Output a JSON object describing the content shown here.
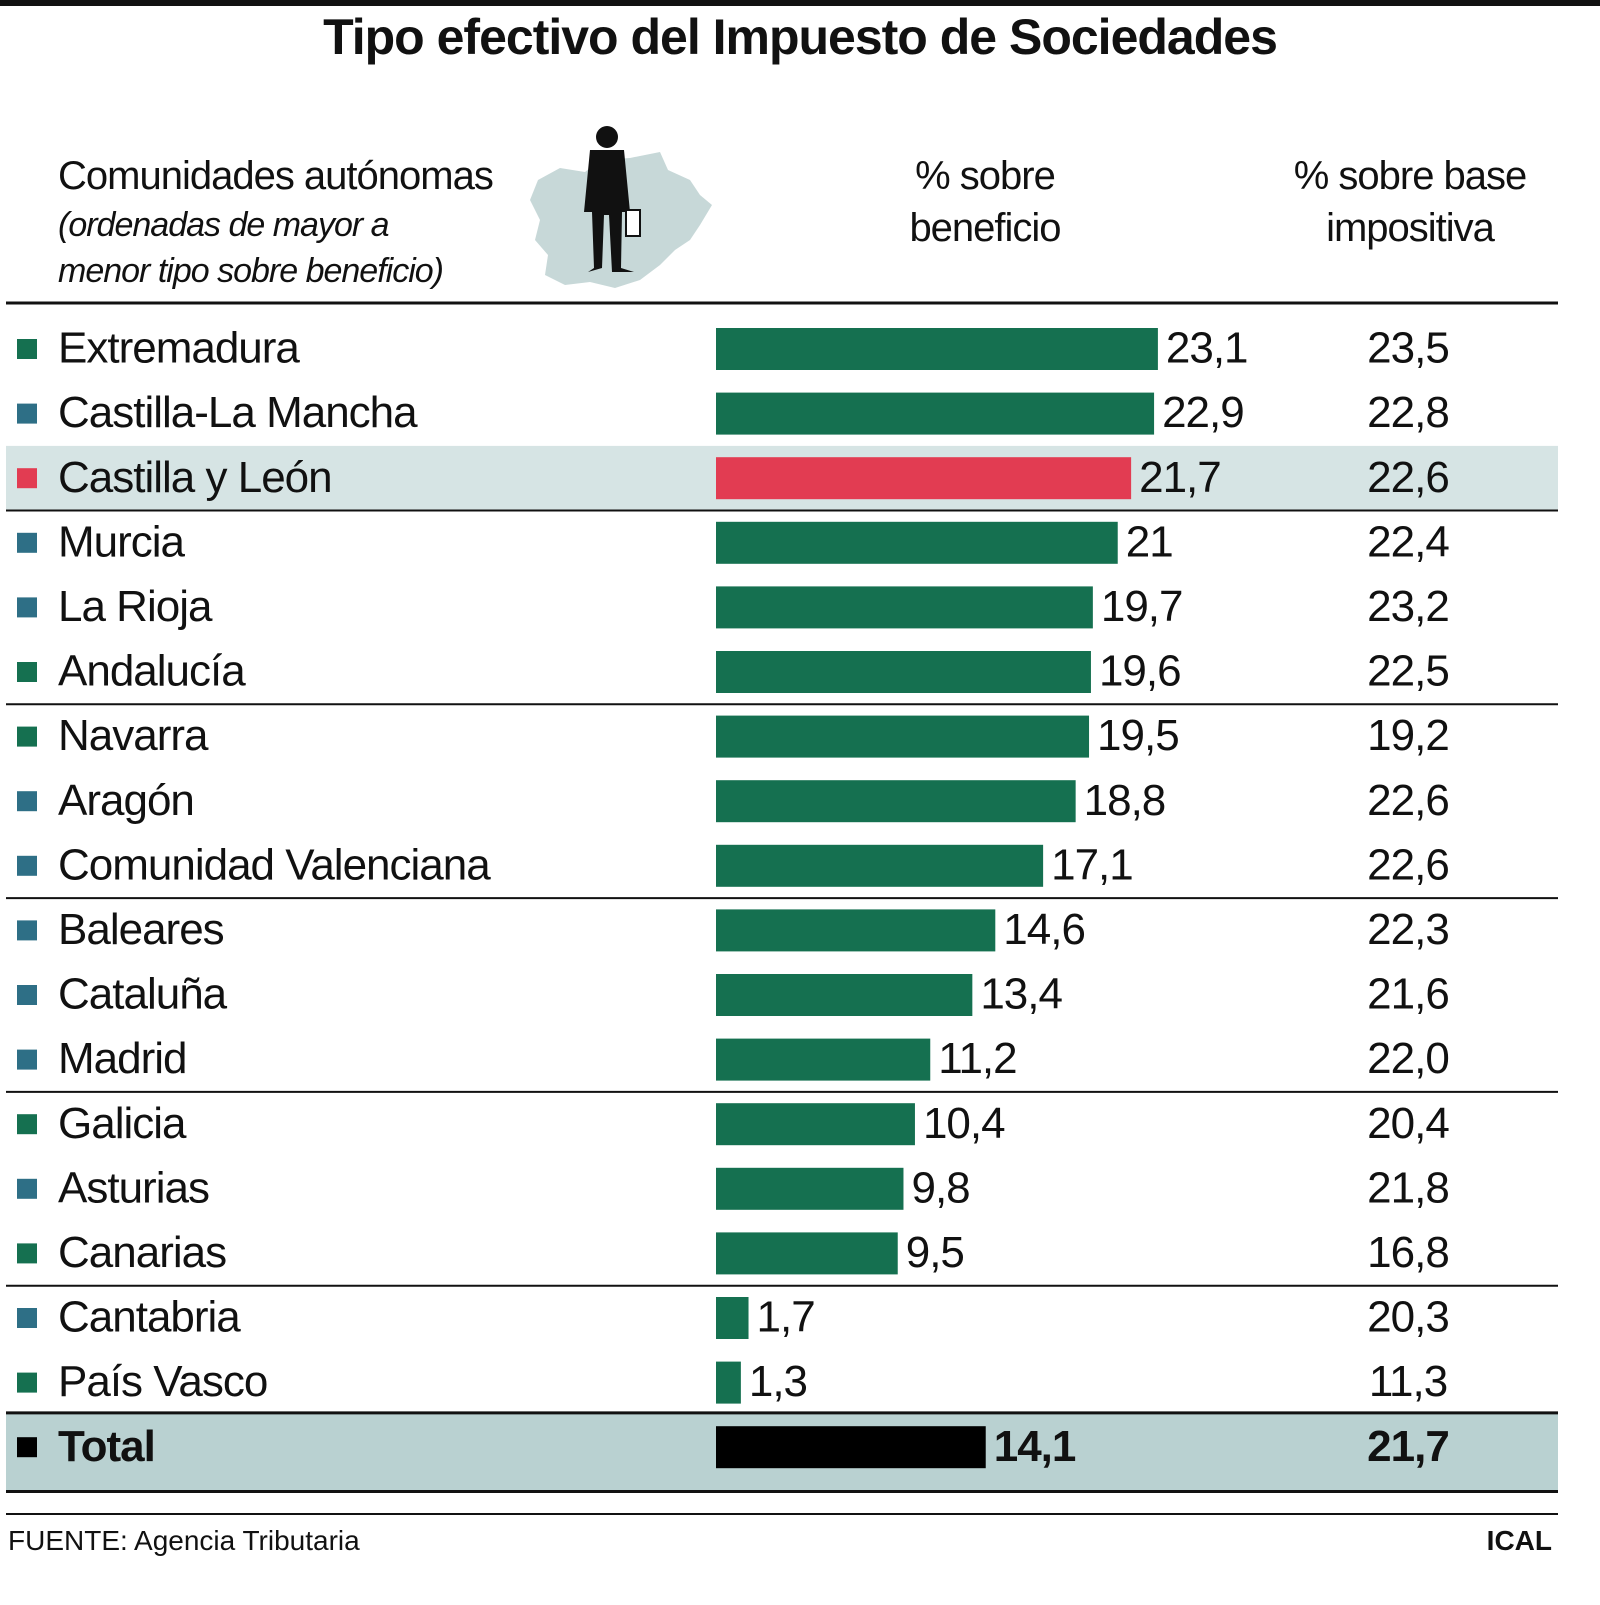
{
  "chart_data": {
    "type": "bar",
    "orientation": "horizontal",
    "title": "Tipo efectivo del Impuesto de Sociedades",
    "category_header": "Comunidades autónomas",
    "category_note": "(ordenadas de mayor a menor tipo sobre beneficio)",
    "categories": [
      "Extremadura",
      "Castilla-La Mancha",
      "Castilla y León",
      "Murcia",
      "La Rioja",
      "Andalucía",
      "Navarra",
      "Aragón",
      "Comunidad Valenciana",
      "Baleares",
      "Cataluña",
      "Madrid",
      "Galicia",
      "Asturias",
      "Canarias",
      "Cantabria",
      "País Vasco",
      "Total"
    ],
    "marker_colors": [
      "#157050",
      "#2e6f86",
      "#e23c52",
      "#2e6f86",
      "#2e6f86",
      "#157050",
      "#157050",
      "#2e6f86",
      "#2e6f86",
      "#2e6f86",
      "#2e6f86",
      "#2e6f86",
      "#157050",
      "#2e6f86",
      "#157050",
      "#2e6f86",
      "#157050",
      "#000000"
    ],
    "bar_colors": [
      "#157050",
      "#157050",
      "#e23c52",
      "#157050",
      "#157050",
      "#157050",
      "#157050",
      "#157050",
      "#157050",
      "#157050",
      "#157050",
      "#157050",
      "#157050",
      "#157050",
      "#157050",
      "#157050",
      "#157050",
      "#000000"
    ],
    "series": [
      {
        "name": "% sobre beneficio",
        "values": [
          23.1,
          22.9,
          21.7,
          21,
          19.7,
          19.6,
          19.5,
          18.8,
          17.1,
          14.6,
          13.4,
          11.2,
          10.4,
          9.8,
          9.5,
          1.7,
          1.3,
          14.1
        ],
        "value_labels": [
          "23,1",
          "22,9",
          "21,7",
          "21",
          "19,7",
          "19,6",
          "19,5",
          "18,8",
          "17,1",
          "14,6",
          "13,4",
          "11,2",
          "10,4",
          "9,8",
          "9,5",
          "1,7",
          "1,3",
          "14,1"
        ]
      },
      {
        "name": "% sobre base impositiva",
        "values": [
          23.5,
          22.8,
          22.6,
          22.4,
          23.2,
          22.5,
          19.2,
          22.6,
          22.6,
          22.3,
          21.6,
          22.0,
          20.4,
          21.8,
          16.8,
          20.3,
          11.3,
          21.7
        ],
        "value_labels": [
          "23,5",
          "22,8",
          "22,6",
          "22,4",
          "23,2",
          "22,5",
          "19,2",
          "22,6",
          "22,6",
          "22,3",
          "21,6",
          "22,0",
          "20,4",
          "21,8",
          "16,8",
          "20,3",
          "11,3",
          "21,7"
        ]
      }
    ],
    "source": "FUENTE: Agencia Tributaria",
    "credit": "ICAL"
  }
}
